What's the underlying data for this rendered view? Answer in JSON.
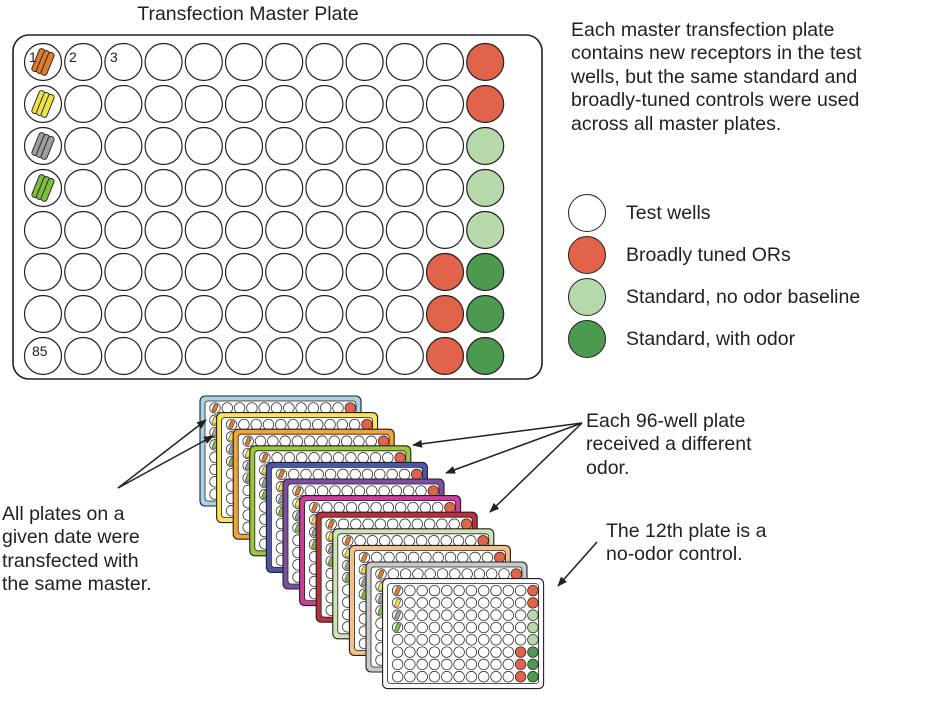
{
  "master_plate": {
    "title": "Transfection Master Plate",
    "well_labels": [
      "1",
      "2",
      "3",
      "85"
    ]
  },
  "description": "Each master transfection plate\ncontains new receptors in the test\nwells, but the same standard and\nbroadly-tuned controls were used\nacross all master plates.",
  "legend": [
    {
      "label": "Test wells",
      "color": "#ffffff"
    },
    {
      "label": "Broadly tuned ORs",
      "color": "#e1644a"
    },
    {
      "label": "Standard, no odor baseline",
      "color": "#b6d9ac"
    },
    {
      "label": "Standard, with odor",
      "color": "#4b9a4f"
    }
  ],
  "annotations": {
    "different_odor": "Each 96-well plate\nreceived a different\nodor.",
    "no_odor_control": "The 12th plate is a\nno-odor control.",
    "same_master": "All plates on a\ngiven date were\ntransfected with\nthe same master."
  },
  "stack_frame_colors": [
    "#a9d3e8",
    "#f6e45c",
    "#f2a535",
    "#9bc73d",
    "#4a59a6",
    "#7d4fa0",
    "#ca3f9b",
    "#b8313c",
    "#cfe4b7",
    "#f3c08a",
    "#c9c9c9",
    "#ffffff"
  ],
  "tube_colors": [
    "#e07b2a",
    "#eee24a",
    "#9e9e9e",
    "#7bbf3c"
  ]
}
